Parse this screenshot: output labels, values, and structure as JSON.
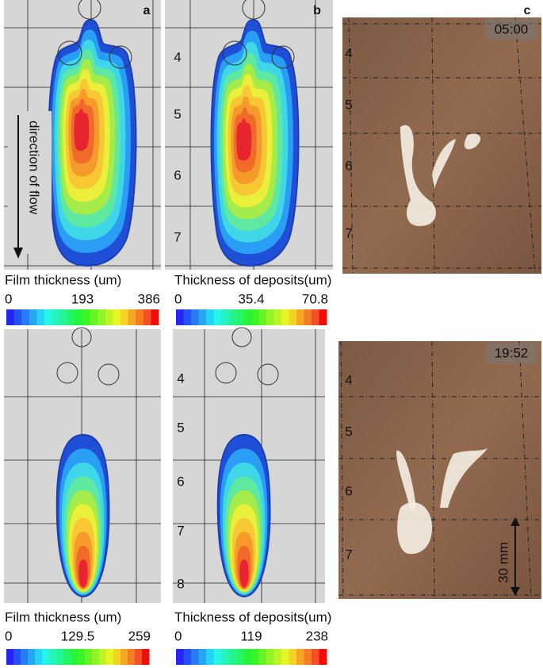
{
  "panels": [
    {
      "label": "a"
    },
    {
      "label": "b"
    },
    {
      "label": "c"
    }
  ],
  "flow_label": "direction of flow",
  "scale_label": "30 mm",
  "top": {
    "b_rows": [
      "4",
      "5",
      "6",
      "7"
    ],
    "c_rows": [
      "4",
      "5",
      "6",
      "7"
    ],
    "time": "05:00",
    "colorbars": [
      {
        "title": "Film thickness (um)",
        "ticks": [
          "0",
          "193",
          "386"
        ]
      },
      {
        "title": "Thickness of deposits(um)",
        "ticks": [
          "0",
          "35.4",
          "70.8"
        ]
      }
    ]
  },
  "bottom": {
    "b_rows": [
      "4",
      "5",
      "6",
      "7",
      "8"
    ],
    "c_rows": [
      "4",
      "5",
      "6",
      "7"
    ],
    "time": "19:52",
    "colorbars": [
      {
        "title": "Film thickness (um)",
        "ticks": [
          "0",
          "129.5",
          "259"
        ]
      },
      {
        "title": "Thickness of deposits(um)",
        "ticks": [
          "0",
          "119",
          "238"
        ]
      }
    ]
  }
}
